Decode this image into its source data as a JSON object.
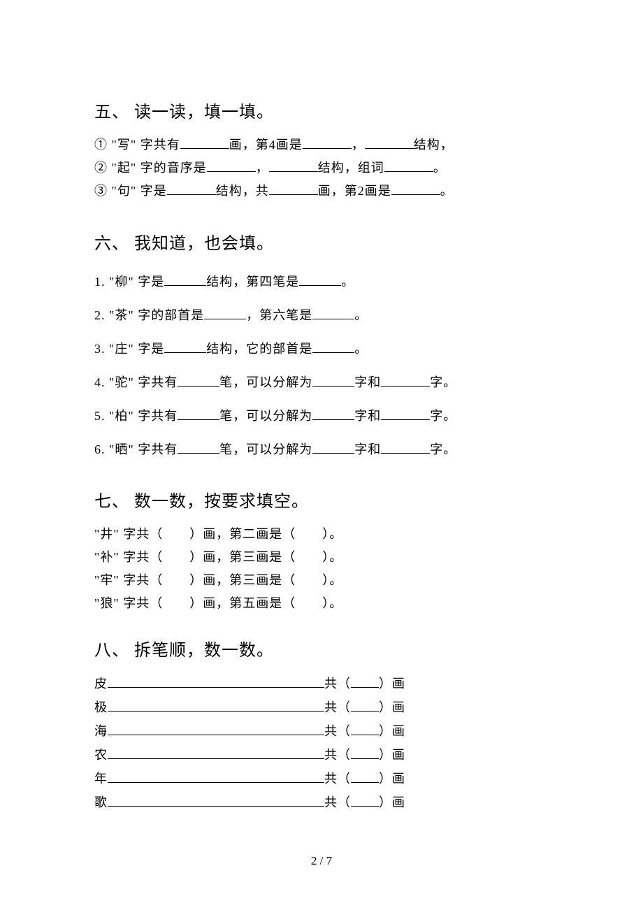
{
  "page": {
    "number": "2 / 7"
  },
  "s5": {
    "title": "五、 读一读，填一填。",
    "q1a": "① \"写\" 字共有",
    "q1b": "画，第4画是",
    "q1c": "，",
    "q1d": "结构，",
    "q2a": "② \"起\" 字的音序是",
    "q2b": "，",
    "q2c": "结构，组词",
    "q2d": "。",
    "q3a": "③ \"句\" 字是",
    "q3b": "结构，共",
    "q3c": "画，第2画是",
    "q3d": "。"
  },
  "s6": {
    "title": "六、 我知道，也会填。",
    "q1a": "1. \"柳\" 字是",
    "q1b": "结构，第四笔是",
    "q1c": "。",
    "q2a": "2. \"茶\" 字的部首是",
    "q2b": "，第六笔是",
    "q2c": "。",
    "q3a": "3. \"庄\" 字是",
    "q3b": "结构，它的部首是",
    "q3c": "。",
    "q4a": "4. \"驼\" 字共有",
    "q4b": "笔，可以分解为",
    "q4c": "字和",
    "q4d": "字。",
    "q5a": "5. \"柏\" 字共有",
    "q5b": "笔，可以分解为",
    "q5c": "字和",
    "q5d": "字。",
    "q6a": "6. \"晒\" 字共有",
    "q6b": "笔，可以分解为",
    "q6c": "字和",
    "q6d": "字。"
  },
  "s7": {
    "title": "七、 数一数，按要求填空。",
    "r1a": "\"井\" 字共（　　）画，第二画是（　　）。",
    "r2a": "\"补\" 字共（　　）画，第三画是（　　）。",
    "r3a": "\"牢\" 字共（　　）画，第三画是（　　）。",
    "r4a": "\"狼\" 字共（　　）画，第五画是（　　）。"
  },
  "s8": {
    "title": "八、 拆笔顺，数一数。",
    "rows": [
      {
        "char": "皮",
        "suffix": "共（",
        "suffix2": "）画"
      },
      {
        "char": "极",
        "suffix": "共（",
        "suffix2": "）画"
      },
      {
        "char": "海",
        "suffix": "共（",
        "suffix2": "）画"
      },
      {
        "char": "农",
        "suffix": "共（",
        "suffix2": "）画"
      },
      {
        "char": "年",
        "suffix": "共（",
        "suffix2": "）画"
      },
      {
        "char": "歌",
        "suffix": "共（",
        "suffix2": "）画"
      }
    ]
  }
}
